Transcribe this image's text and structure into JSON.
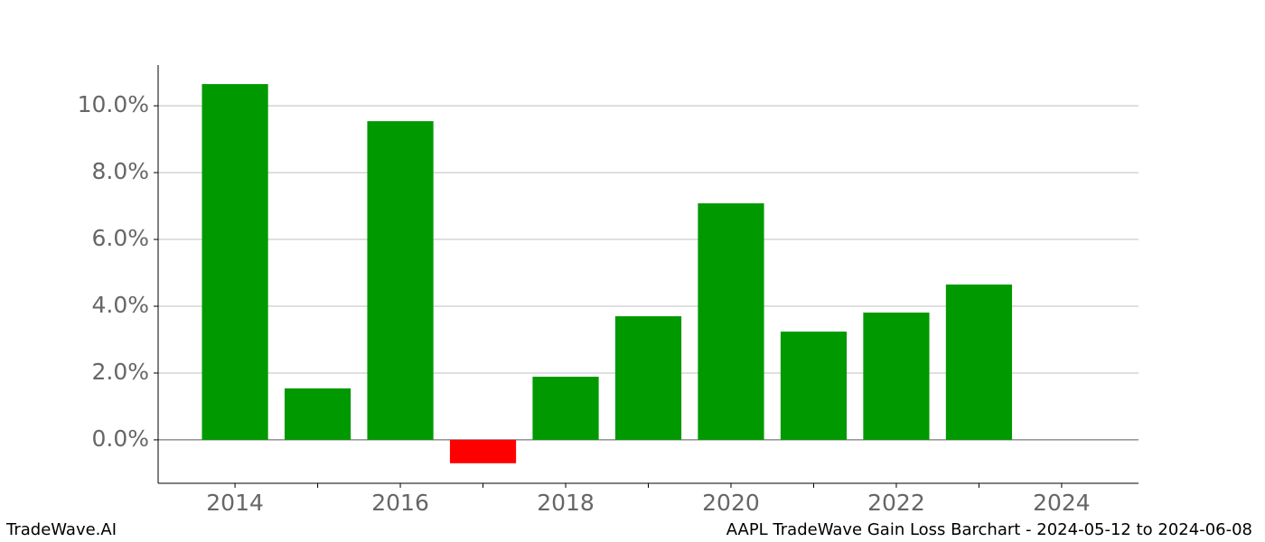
{
  "chart_data": {
    "type": "bar",
    "title": "AAPL TradeWave Gain Loss Barchart - 2024-05-12 to 2024-06-08",
    "brand": "TradeWave.AI",
    "x": [
      2014,
      2015,
      2016,
      2017,
      2018,
      2019,
      2020,
      2021,
      2022,
      2023
    ],
    "values": [
      10.65,
      1.54,
      9.54,
      -0.7,
      1.89,
      3.7,
      7.08,
      3.24,
      3.81,
      4.65
    ],
    "color_positive": "#009900",
    "color_negative": "#ff0000",
    "xlim": [
      2013.07,
      2024.93
    ],
    "ylim": [
      -1.3,
      11.22
    ],
    "xticks": [
      2014,
      2016,
      2018,
      2020,
      2022,
      2024
    ],
    "xticks_minor": [
      2015,
      2017,
      2019,
      2021,
      2023
    ],
    "yticks": [
      {
        "value": 0,
        "label": "0.0%"
      },
      {
        "value": 2,
        "label": "2.0%"
      },
      {
        "value": 4,
        "label": "4.0%"
      },
      {
        "value": 6,
        "label": "6.0%"
      },
      {
        "value": 8,
        "label": "8.0%"
      },
      {
        "value": 10,
        "label": "10.0%"
      }
    ],
    "grid": true
  }
}
